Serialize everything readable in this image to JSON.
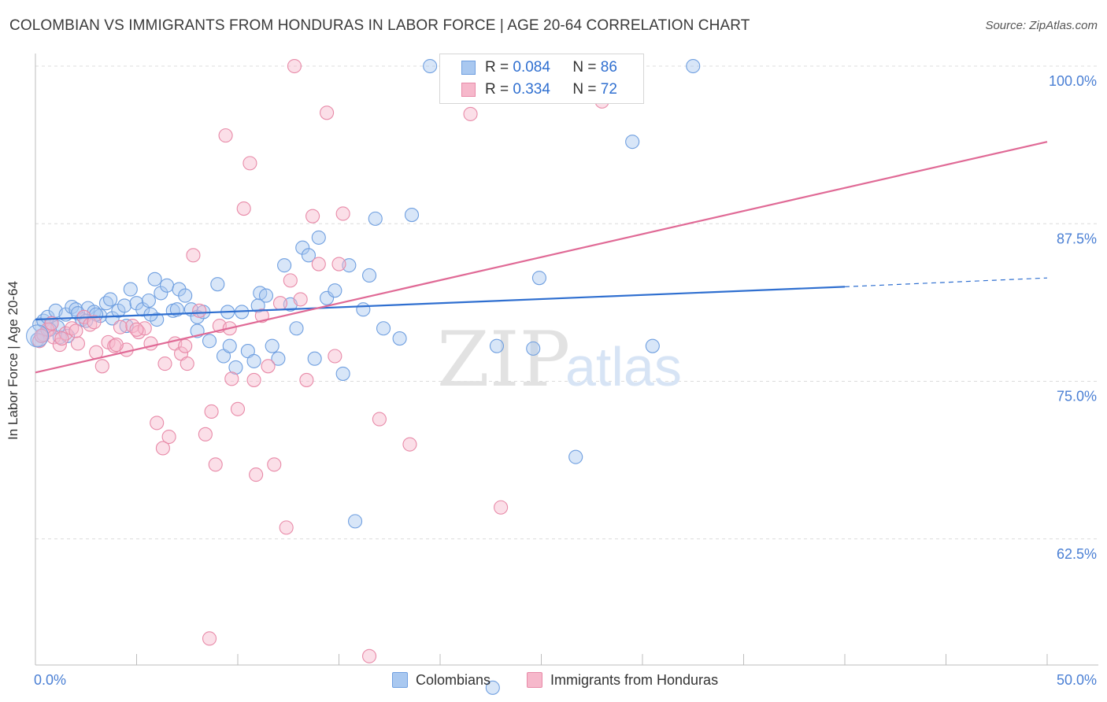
{
  "title": "COLOMBIAN VS IMMIGRANTS FROM HONDURAS IN LABOR FORCE | AGE 20-64 CORRELATION CHART",
  "source": "Source: ZipAtlas.com",
  "watermark": {
    "zip": "ZIP",
    "atlas": "atlas"
  },
  "legend": {
    "r_label": "R =",
    "n_label": "N =",
    "colombians": {
      "r": "0.084",
      "n": "86"
    },
    "honduras": {
      "r": "0.334",
      "n": "72"
    }
  },
  "bottom_legend": {
    "colombians": "Colombians",
    "honduras": "Immigrants from Honduras"
  },
  "colors": {
    "blue_fill": "#a9c8f0",
    "blue_stroke": "#6f9fe0",
    "blue_line": "#2f6fd0",
    "pink_fill": "#f6b8cb",
    "pink_stroke": "#e88aa8",
    "pink_line": "#e06a96",
    "axis_text": "#4a7fd4"
  },
  "chart_data": {
    "type": "scatter",
    "title": "COLOMBIAN VS IMMIGRANTS FROM HONDURAS IN LABOR FORCE | AGE 20-64 CORRELATION CHART",
    "xlabel": "",
    "ylabel": "In Labor Force | Age 20-64",
    "xlim": [
      0,
      50
    ],
    "ylim": [
      52.5,
      101.0
    ],
    "x_tick_labels": [
      {
        "value": 0,
        "label": "0.0%"
      },
      {
        "value": 50,
        "label": "50.0%"
      }
    ],
    "y_tick_labels": [
      {
        "value": 100,
        "label": "100.0%"
      },
      {
        "value": 87.5,
        "label": "87.5%"
      },
      {
        "value": 75,
        "label": "75.0%"
      },
      {
        "value": 62.5,
        "label": "62.5%"
      }
    ],
    "grid": "horizontal dashed",
    "series": [
      {
        "name": "Colombians",
        "color": "#a9c8f0",
        "trend": {
          "x": [
            0,
            40,
            50
          ],
          "y": [
            79.9,
            82.5,
            83.2
          ],
          "solid_until": 40
        },
        "points": [
          [
            0.2,
            79.5
          ],
          [
            0.4,
            79.8
          ],
          [
            0.6,
            80.1
          ],
          [
            0.8,
            79.6
          ],
          [
            1.0,
            80.6
          ],
          [
            1.2,
            78.5
          ],
          [
            1.5,
            80.3
          ],
          [
            1.8,
            80.9
          ],
          [
            2.0,
            80.7
          ],
          [
            2.3,
            79.9
          ],
          [
            2.6,
            80.8
          ],
          [
            2.9,
            80.5
          ],
          [
            3.2,
            80.2
          ],
          [
            3.5,
            81.2
          ],
          [
            3.8,
            80.0
          ],
          [
            4.1,
            80.6
          ],
          [
            4.4,
            81.0
          ],
          [
            4.7,
            82.3
          ],
          [
            5.0,
            81.2
          ],
          [
            5.3,
            80.7
          ],
          [
            5.6,
            81.4
          ],
          [
            5.9,
            83.1
          ],
          [
            6.2,
            82.0
          ],
          [
            6.5,
            82.6
          ],
          [
            6.8,
            80.6
          ],
          [
            7.1,
            82.3
          ],
          [
            7.4,
            81.8
          ],
          [
            7.7,
            80.7
          ],
          [
            8.0,
            80.1
          ],
          [
            8.3,
            80.5
          ],
          [
            8.6,
            78.2
          ],
          [
            9.0,
            82.7
          ],
          [
            9.3,
            77.0
          ],
          [
            9.6,
            77.8
          ],
          [
            9.9,
            76.1
          ],
          [
            10.2,
            80.5
          ],
          [
            10.5,
            77.4
          ],
          [
            10.8,
            76.6
          ],
          [
            11.1,
            82.0
          ],
          [
            11.4,
            81.8
          ],
          [
            11.7,
            77.8
          ],
          [
            12.0,
            76.8
          ],
          [
            12.3,
            84.2
          ],
          [
            12.6,
            81.1
          ],
          [
            12.9,
            79.2
          ],
          [
            13.2,
            85.6
          ],
          [
            13.5,
            85.0
          ],
          [
            13.8,
            76.8
          ],
          [
            14.0,
            86.4
          ],
          [
            14.4,
            81.6
          ],
          [
            14.8,
            82.2
          ],
          [
            15.2,
            75.6
          ],
          [
            15.5,
            84.2
          ],
          [
            15.8,
            63.9
          ],
          [
            16.2,
            80.7
          ],
          [
            16.5,
            83.4
          ],
          [
            16.8,
            87.9
          ],
          [
            17.2,
            79.2
          ],
          [
            18.0,
            78.4
          ],
          [
            18.6,
            88.2
          ],
          [
            19.5,
            100.0
          ],
          [
            22.6,
            50.7
          ],
          [
            22.8,
            77.8
          ],
          [
            24.0,
            100.0
          ],
          [
            24.6,
            77.6
          ],
          [
            24.9,
            83.2
          ],
          [
            26.7,
            69.0
          ],
          [
            29.5,
            94.0
          ],
          [
            30.5,
            77.8
          ],
          [
            32.5,
            100.0
          ],
          [
            0.3,
            78.6
          ],
          [
            1.1,
            79.3
          ],
          [
            2.1,
            80.4
          ],
          [
            3.0,
            80.3
          ],
          [
            4.5,
            79.4
          ],
          [
            6.0,
            79.9
          ],
          [
            7.0,
            80.7
          ],
          [
            8.0,
            79.0
          ],
          [
            9.5,
            80.5
          ],
          [
            11.0,
            81.0
          ],
          [
            2.5,
            79.8
          ],
          [
            3.7,
            81.5
          ],
          [
            5.7,
            80.3
          ],
          [
            0.1,
            78.3
          ],
          [
            0.7,
            79.1
          ],
          [
            1.6,
            78.6
          ]
        ]
      },
      {
        "name": "Immigrants from Honduras",
        "color": "#f6b8cb",
        "trend": {
          "x": [
            0,
            50
          ],
          "y": [
            75.7,
            94.0
          ]
        },
        "points": [
          [
            0.2,
            78.2
          ],
          [
            0.4,
            78.7
          ],
          [
            0.6,
            79.1
          ],
          [
            0.9,
            78.5
          ],
          [
            1.2,
            77.9
          ],
          [
            1.5,
            78.8
          ],
          [
            1.8,
            79.2
          ],
          [
            2.1,
            78.0
          ],
          [
            2.4,
            80.1
          ],
          [
            2.7,
            79.5
          ],
          [
            3.0,
            77.3
          ],
          [
            3.3,
            76.2
          ],
          [
            3.6,
            78.1
          ],
          [
            3.9,
            77.8
          ],
          [
            4.2,
            79.3
          ],
          [
            4.5,
            77.5
          ],
          [
            4.8,
            79.4
          ],
          [
            5.1,
            78.9
          ],
          [
            5.4,
            79.2
          ],
          [
            5.7,
            78.0
          ],
          [
            6.0,
            71.7
          ],
          [
            6.3,
            69.7
          ],
          [
            6.6,
            70.6
          ],
          [
            6.9,
            78.0
          ],
          [
            7.2,
            77.2
          ],
          [
            7.5,
            76.4
          ],
          [
            7.8,
            85.0
          ],
          [
            8.1,
            80.6
          ],
          [
            8.4,
            70.8
          ],
          [
            8.7,
            72.6
          ],
          [
            8.9,
            68.4
          ],
          [
            9.1,
            79.4
          ],
          [
            9.4,
            94.5
          ],
          [
            9.7,
            75.2
          ],
          [
            10.0,
            72.8
          ],
          [
            10.3,
            88.7
          ],
          [
            10.6,
            92.3
          ],
          [
            10.9,
            67.6
          ],
          [
            11.2,
            80.2
          ],
          [
            11.5,
            76.2
          ],
          [
            11.8,
            68.4
          ],
          [
            12.1,
            81.2
          ],
          [
            12.4,
            63.4
          ],
          [
            12.8,
            100.0
          ],
          [
            13.1,
            81.5
          ],
          [
            13.4,
            75.1
          ],
          [
            13.7,
            88.1
          ],
          [
            14.0,
            84.3
          ],
          [
            14.4,
            96.3
          ],
          [
            14.8,
            77.0
          ],
          [
            15.2,
            88.3
          ],
          [
            16.5,
            53.2
          ],
          [
            17.0,
            72.0
          ],
          [
            18.5,
            70.0
          ],
          [
            21.5,
            96.2
          ],
          [
            23.0,
            65.0
          ],
          [
            28.0,
            97.2
          ],
          [
            29.5,
            100.0
          ],
          [
            0.3,
            78.6
          ],
          [
            0.8,
            79.6
          ],
          [
            1.3,
            78.4
          ],
          [
            2.0,
            79.0
          ],
          [
            2.9,
            79.7
          ],
          [
            4.0,
            77.9
          ],
          [
            5.0,
            79.1
          ],
          [
            6.4,
            76.4
          ],
          [
            7.4,
            77.8
          ],
          [
            8.6,
            54.6
          ],
          [
            9.6,
            79.2
          ],
          [
            10.8,
            75.1
          ],
          [
            12.6,
            83.0
          ],
          [
            15.0,
            84.3
          ]
        ]
      }
    ]
  }
}
